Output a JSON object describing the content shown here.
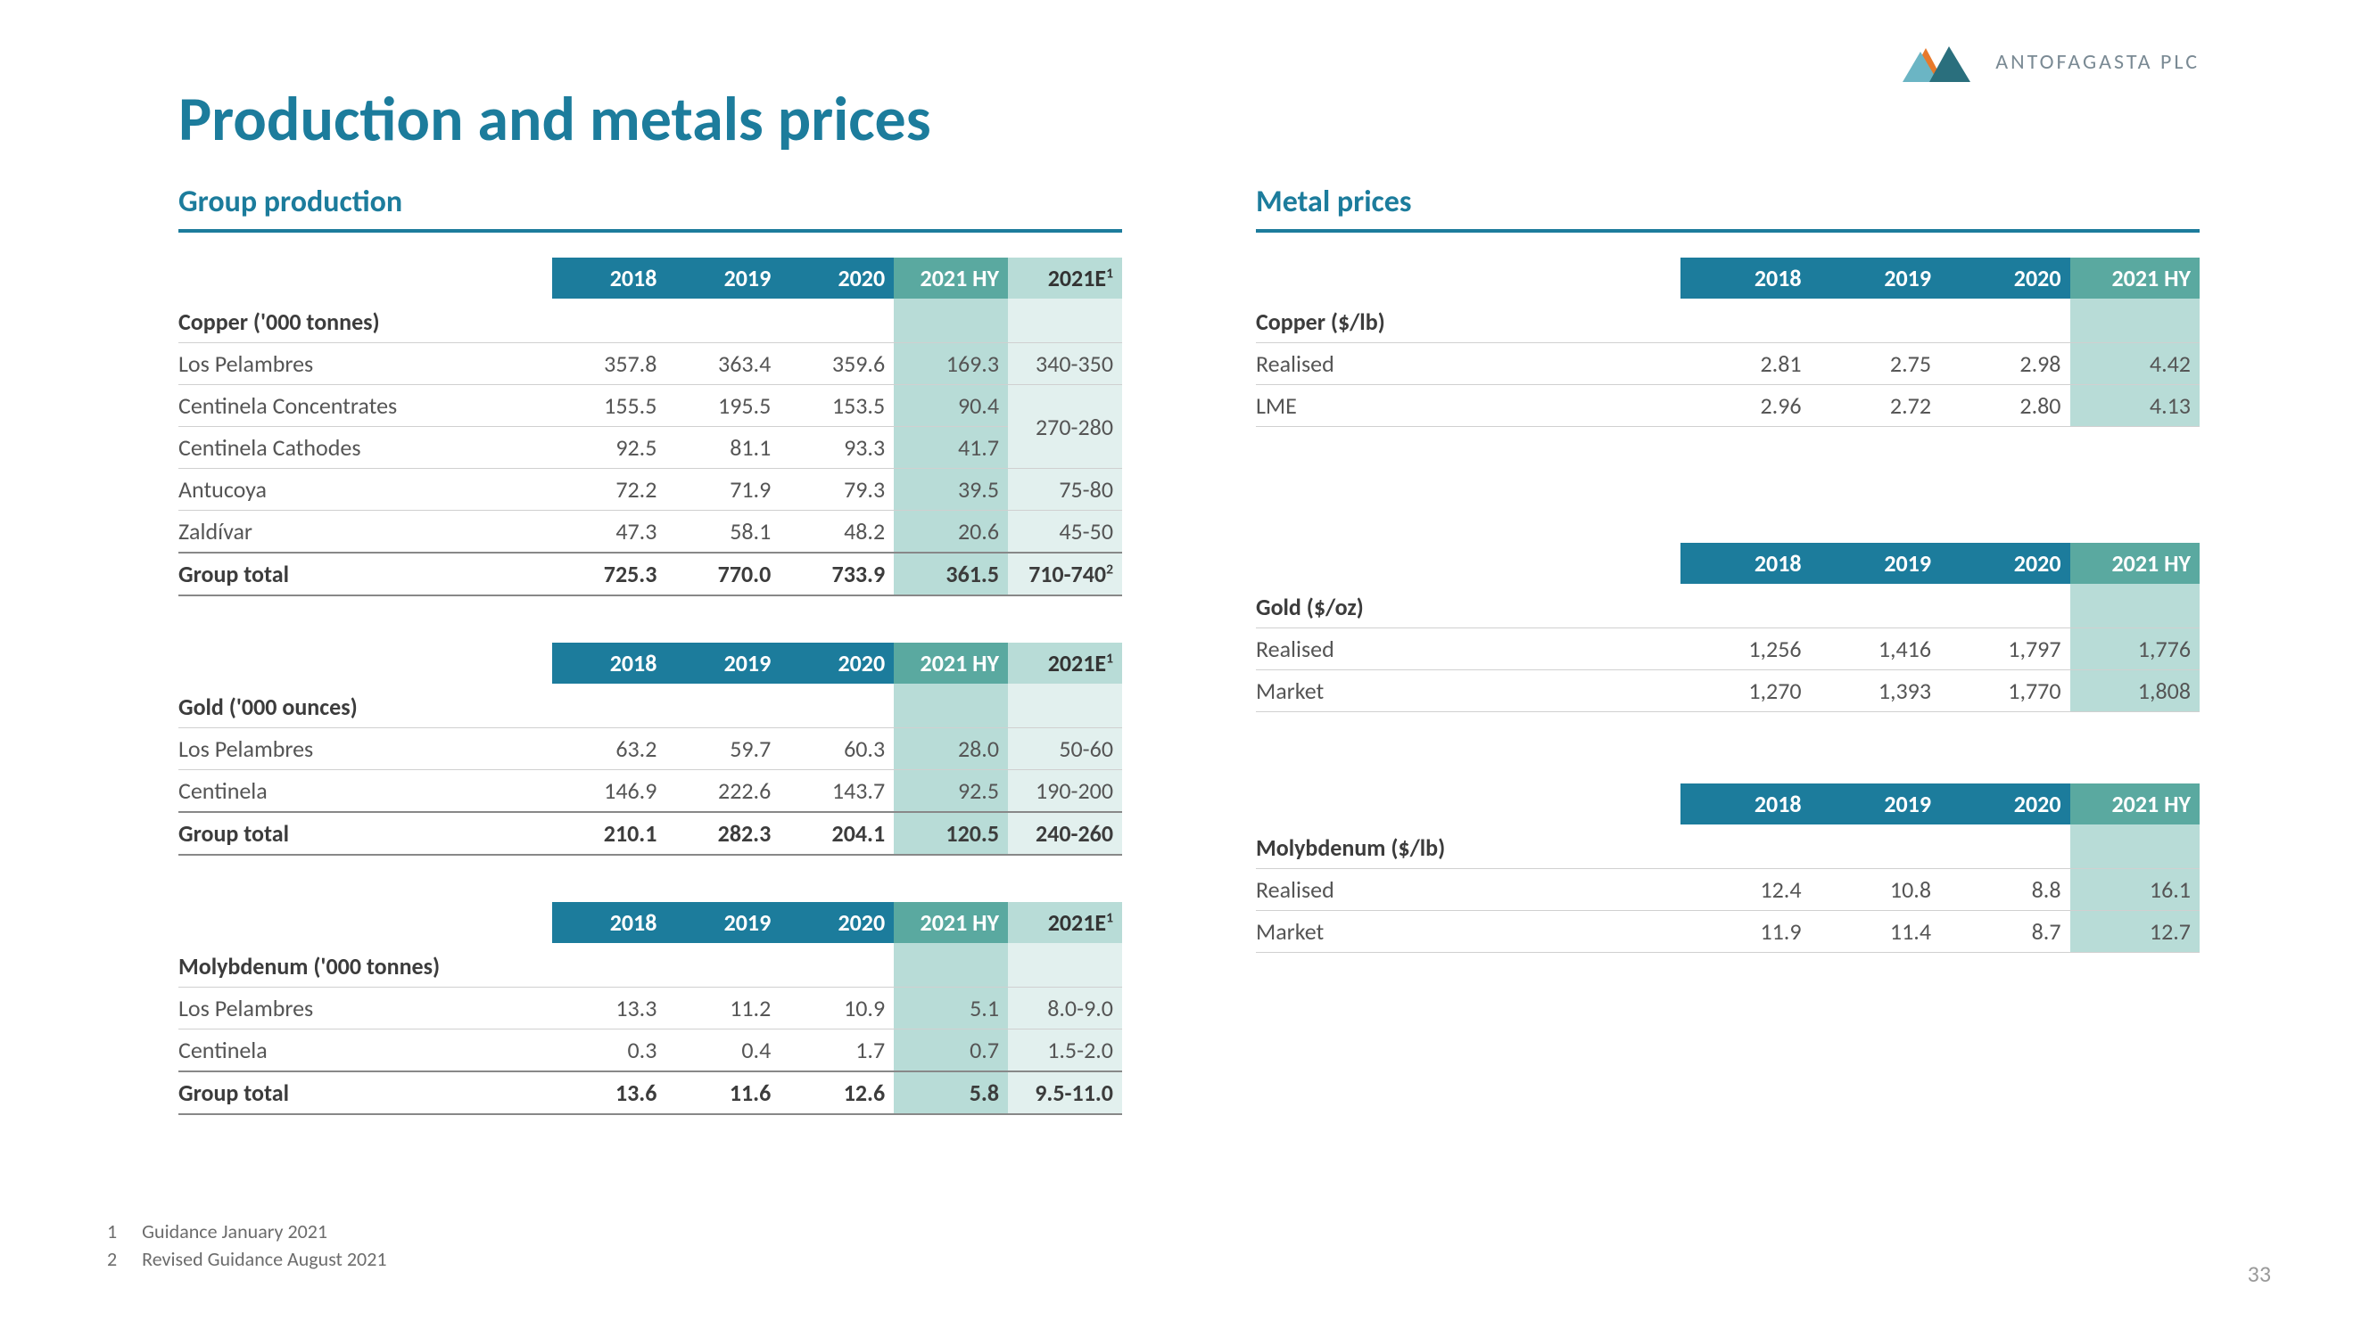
{
  "company_name": "ANTOFAGASTA PLC",
  "logo_colors": {
    "orange": "#e7792b",
    "teal_dark": "#2a6f7d",
    "teal_light": "#6bb5c4"
  },
  "title": "Production and metals prices",
  "title_color": "#1c7c9c",
  "header_bg": "#1c7c9c",
  "hl1_bg_head": "#5aa9a0",
  "hl2_bg_head": "#b8dcd7",
  "hl1_bg_cell": "#b8dcd7",
  "hl2_bg_cell": "#e2f0ee",
  "page_number": "33",
  "left": {
    "section_title": "Group production",
    "header_cols": [
      "2018",
      "2019",
      "2020",
      "2021 HY",
      "2021E"
    ],
    "header_sup": "1",
    "tables": [
      {
        "category": "Copper ('000 tonnes)",
        "rows": [
          {
            "label": "Los Pelambres",
            "v": [
              "357.8",
              "363.4",
              "359.6",
              "169.3",
              "340-350"
            ]
          },
          {
            "label": "Centinela Concentrates",
            "v": [
              "155.5",
              "195.5",
              "153.5",
              "90.4",
              ""
            ],
            "merge_start": true,
            "merge_value": "270-280",
            "merge_span": 2
          },
          {
            "label": "Centinela Cathodes",
            "v": [
              "92.5",
              "81.1",
              "93.3",
              "41.7",
              ""
            ],
            "merge_cont": true
          },
          {
            "label": "Antucoya",
            "v": [
              "72.2",
              "71.9",
              "79.3",
              "39.5",
              "75-80"
            ]
          },
          {
            "label": "Zaldívar",
            "v": [
              "47.3",
              "58.1",
              "48.2",
              "20.6",
              "45-50"
            ]
          }
        ],
        "total": {
          "label": "Group total",
          "v": [
            "725.3",
            "770.0",
            "733.9",
            "361.5",
            "710-740"
          ],
          "sup": "2"
        }
      },
      {
        "category": "Gold ('000 ounces)",
        "rows": [
          {
            "label": "Los Pelambres",
            "v": [
              "63.2",
              "59.7",
              "60.3",
              "28.0",
              "50-60"
            ]
          },
          {
            "label": "Centinela",
            "v": [
              "146.9",
              "222.6",
              "143.7",
              "92.5",
              "190-200"
            ]
          }
        ],
        "total": {
          "label": "Group total",
          "v": [
            "210.1",
            "282.3",
            "204.1",
            "120.5",
            "240-260"
          ]
        }
      },
      {
        "category": "Molybdenum ('000 tonnes)",
        "rows": [
          {
            "label": "Los Pelambres",
            "v": [
              "13.3",
              "11.2",
              "10.9",
              "5.1",
              "8.0-9.0"
            ]
          },
          {
            "label": "Centinela",
            "v": [
              "0.3",
              "0.4",
              "1.7",
              "0.7",
              "1.5-2.0"
            ]
          }
        ],
        "total": {
          "label": "Group total",
          "v": [
            "13.6",
            "11.6",
            "12.6",
            "5.8",
            "9.5-11.0"
          ]
        }
      }
    ]
  },
  "right": {
    "section_title": "Metal prices",
    "header_cols": [
      "2018",
      "2019",
      "2020",
      "2021 HY"
    ],
    "tables": [
      {
        "category": "Copper ($/lb)",
        "rows": [
          {
            "label": "Realised",
            "v": [
              "2.81",
              "2.75",
              "2.98",
              "4.42"
            ]
          },
          {
            "label": "LME",
            "v": [
              "2.96",
              "2.72",
              "2.80",
              "4.13"
            ]
          }
        ]
      },
      {
        "category": "Gold ($/oz)",
        "rows": [
          {
            "label": "Realised",
            "v": [
              "1,256",
              "1,416",
              "1,797",
              "1,776"
            ]
          },
          {
            "label": "Market",
            "v": [
              "1,270",
              "1,393",
              "1,770",
              "1,808"
            ]
          }
        ]
      },
      {
        "category": "Molybdenum ($/lb)",
        "rows": [
          {
            "label": "Realised",
            "v": [
              "12.4",
              "10.8",
              "8.8",
              "16.1"
            ]
          },
          {
            "label": "Market",
            "v": [
              "11.9",
              "11.4",
              "8.7",
              "12.7"
            ]
          }
        ]
      }
    ]
  },
  "footnotes": [
    {
      "n": "1",
      "text": "Guidance January 2021"
    },
    {
      "n": "2",
      "text": "Revised Guidance August 2021"
    }
  ]
}
